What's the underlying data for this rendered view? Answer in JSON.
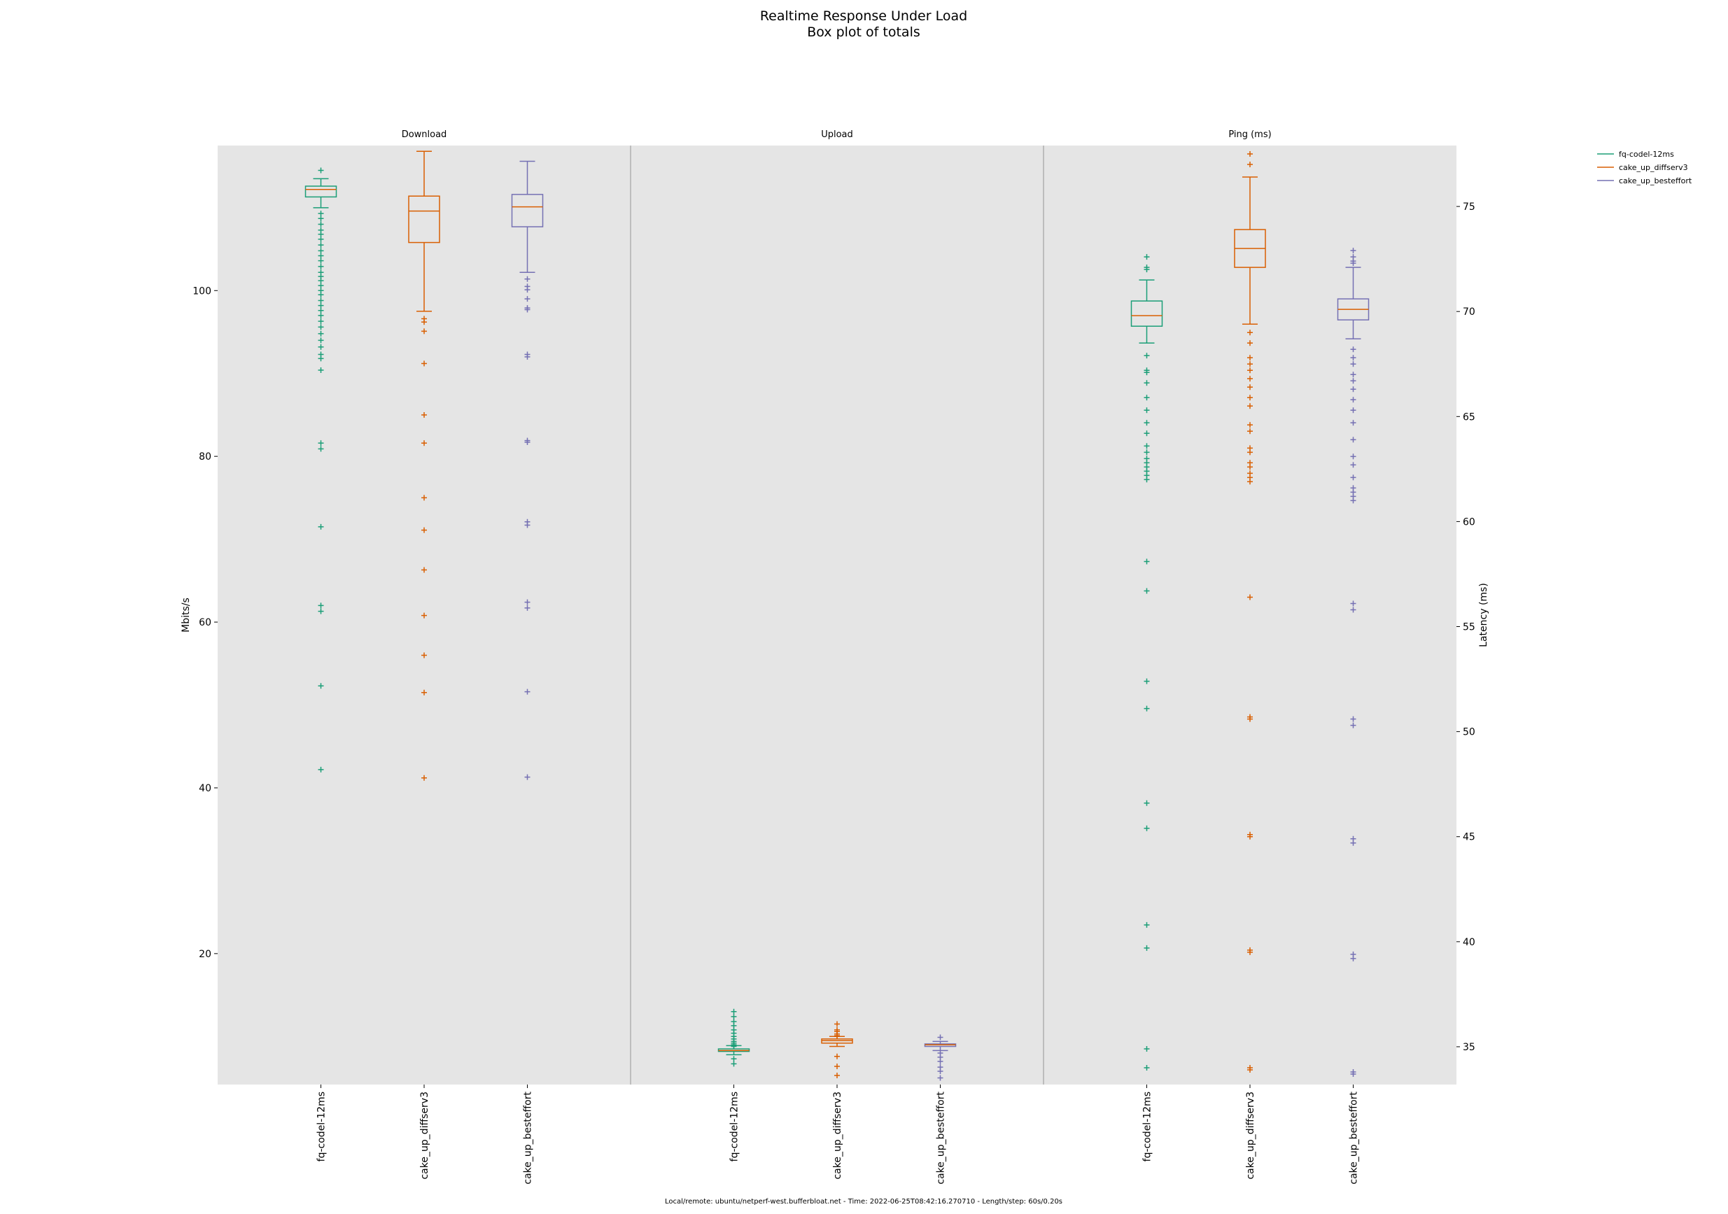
{
  "title": "Realtime Response Under Load",
  "subtitle": "Box plot of totals",
  "footer": "Local/remote: ubuntu/netperf-west.bufferbloat.net - Time: 2022-06-25T08:42:16.270710 - Length/step: 60s/0.20s",
  "colors": {
    "fq-codel-12ms": "#1b9e77",
    "cake_up_diffserv3": "#d95f02",
    "cake_up_besteffort": "#7570b3",
    "panel_bg": "#e5e5e5"
  },
  "chart_data": {
    "type": "box",
    "grid": false,
    "legend_position": "top-right",
    "legend": [
      "fq-codel-12ms",
      "cake_up_diffserv3",
      "cake_up_besteffort"
    ],
    "left_axis": {
      "label": "Mbits/s",
      "ticks": [
        20,
        40,
        60,
        80,
        100
      ],
      "ylim": [
        4.2,
        117.5
      ]
    },
    "right_axis": {
      "label": "Latency (ms)",
      "ticks": [
        35,
        40,
        45,
        50,
        55,
        60,
        65,
        70,
        75
      ],
      "ylim": [
        33.2,
        77.9
      ]
    },
    "panels": [
      {
        "title": "Download",
        "axis": "left",
        "categories": [
          "fq-codel-12ms",
          "cake_up_diffserv3",
          "cake_up_besteffort"
        ],
        "series": [
          {
            "name": "fq-codel-12ms",
            "whisker_low": 110.0,
            "q1": 111.3,
            "median": 112.2,
            "q3": 112.6,
            "whisker_high": 113.5,
            "fliers": [
              114.5,
              109.3,
              108.7,
              108.0,
              107.3,
              106.8,
              106.2,
              105.5,
              104.8,
              104.2,
              103.6,
              102.9,
              102.2,
              101.7,
              101.2,
              100.6,
              100.0,
              99.5,
              98.8,
              98.2,
              97.6,
              97.0,
              96.3,
              95.6,
              94.8,
              94.0,
              93.2,
              92.3,
              91.8,
              90.4,
              81.6,
              80.9,
              71.5,
              62.0,
              61.3,
              52.3,
              42.2
            ]
          },
          {
            "name": "cake_up_diffserv3",
            "whisker_low": 97.5,
            "q1": 105.8,
            "median": 109.6,
            "q3": 111.4,
            "whisker_high": 116.8,
            "fliers": [
              96.6,
              96.2,
              95.1,
              91.2,
              85.0,
              81.6,
              75.0,
              71.1,
              66.3,
              60.8,
              56.0,
              51.5,
              41.2
            ]
          },
          {
            "name": "cake_up_besteffort",
            "whisker_low": 102.2,
            "q1": 107.7,
            "median": 110.1,
            "q3": 111.6,
            "whisker_high": 115.6,
            "fliers": [
              101.4,
              100.5,
              100.1,
              99.0,
              97.9,
              97.7,
              92.3,
              92.0,
              81.9,
              81.7,
              72.1,
              71.7,
              62.4,
              61.7,
              51.6,
              41.3
            ]
          }
        ]
      },
      {
        "title": "Upload",
        "axis": "left",
        "categories": [
          "fq-codel-12ms",
          "cake_up_diffserv3",
          "cake_up_besteffort"
        ],
        "series": [
          {
            "name": "fq-codel-12ms",
            "whisker_low": 7.8,
            "q1": 8.2,
            "median": 8.3,
            "q3": 8.5,
            "whisker_high": 8.9,
            "fliers": [
              13.0,
              12.4,
              11.8,
              11.3,
              10.8,
              10.4,
              10.0,
              9.7,
              9.4,
              9.2,
              9.0,
              8.8,
              7.3,
              6.7
            ]
          },
          {
            "name": "cake_up_diffserv3",
            "whisker_low": 8.8,
            "q1": 9.2,
            "median": 9.5,
            "q3": 9.7,
            "whisker_high": 10.0,
            "fliers": [
              11.5,
              10.8,
              10.6,
              10.3,
              10.1,
              7.6,
              6.4,
              5.3
            ]
          },
          {
            "name": "cake_up_besteffort",
            "whisker_low": 8.3,
            "q1": 8.8,
            "median": 9.0,
            "q3": 9.1,
            "whisker_high": 9.4,
            "fliers": [
              9.9,
              8.0,
              7.5,
              7.0,
              6.3,
              5.8,
              5.0
            ]
          }
        ]
      },
      {
        "title": "Ping (ms)",
        "axis": "right",
        "categories": [
          "fq-codel-12ms",
          "cake_up_diffserv3",
          "cake_up_besteffort"
        ],
        "series": [
          {
            "name": "fq-codel-12ms",
            "whisker_low": 68.5,
            "q1": 69.3,
            "median": 69.8,
            "q3": 70.5,
            "whisker_high": 71.5,
            "fliers": [
              72.6,
              72.1,
              72.0,
              67.9,
              67.2,
              67.1,
              66.6,
              65.9,
              65.3,
              64.7,
              64.2,
              63.6,
              63.3,
              63.0,
              62.8,
              62.6,
              62.4,
              62.2,
              62.0,
              58.1,
              56.7,
              52.4,
              51.1,
              46.6,
              45.4,
              40.8,
              39.7,
              34.9,
              34.0
            ]
          },
          {
            "name": "cake_up_diffserv3",
            "whisker_low": 69.4,
            "q1": 72.1,
            "median": 73.0,
            "q3": 73.9,
            "whisker_high": 76.4,
            "fliers": [
              77.5,
              77.0,
              69.0,
              68.5,
              67.8,
              67.5,
              67.2,
              66.8,
              66.4,
              65.9,
              65.5,
              64.6,
              64.3,
              63.5,
              63.3,
              62.8,
              62.6,
              62.3,
              62.1,
              61.9,
              56.4,
              50.7,
              50.6,
              45.1,
              45.0,
              39.6,
              39.5,
              34.0,
              33.9
            ]
          },
          {
            "name": "cake_up_besteffort",
            "whisker_low": 68.7,
            "q1": 69.6,
            "median": 70.1,
            "q3": 70.6,
            "whisker_high": 72.1,
            "fliers": [
              72.9,
              72.6,
              72.4,
              72.3,
              68.2,
              67.8,
              67.5,
              67.0,
              66.7,
              66.3,
              65.8,
              65.3,
              64.7,
              63.9,
              63.1,
              62.7,
              62.1,
              61.6,
              61.4,
              61.2,
              61.0,
              56.1,
              55.8,
              50.6,
              50.3,
              44.9,
              44.7,
              39.4,
              39.2,
              33.8,
              33.7
            ]
          }
        ]
      }
    ]
  }
}
